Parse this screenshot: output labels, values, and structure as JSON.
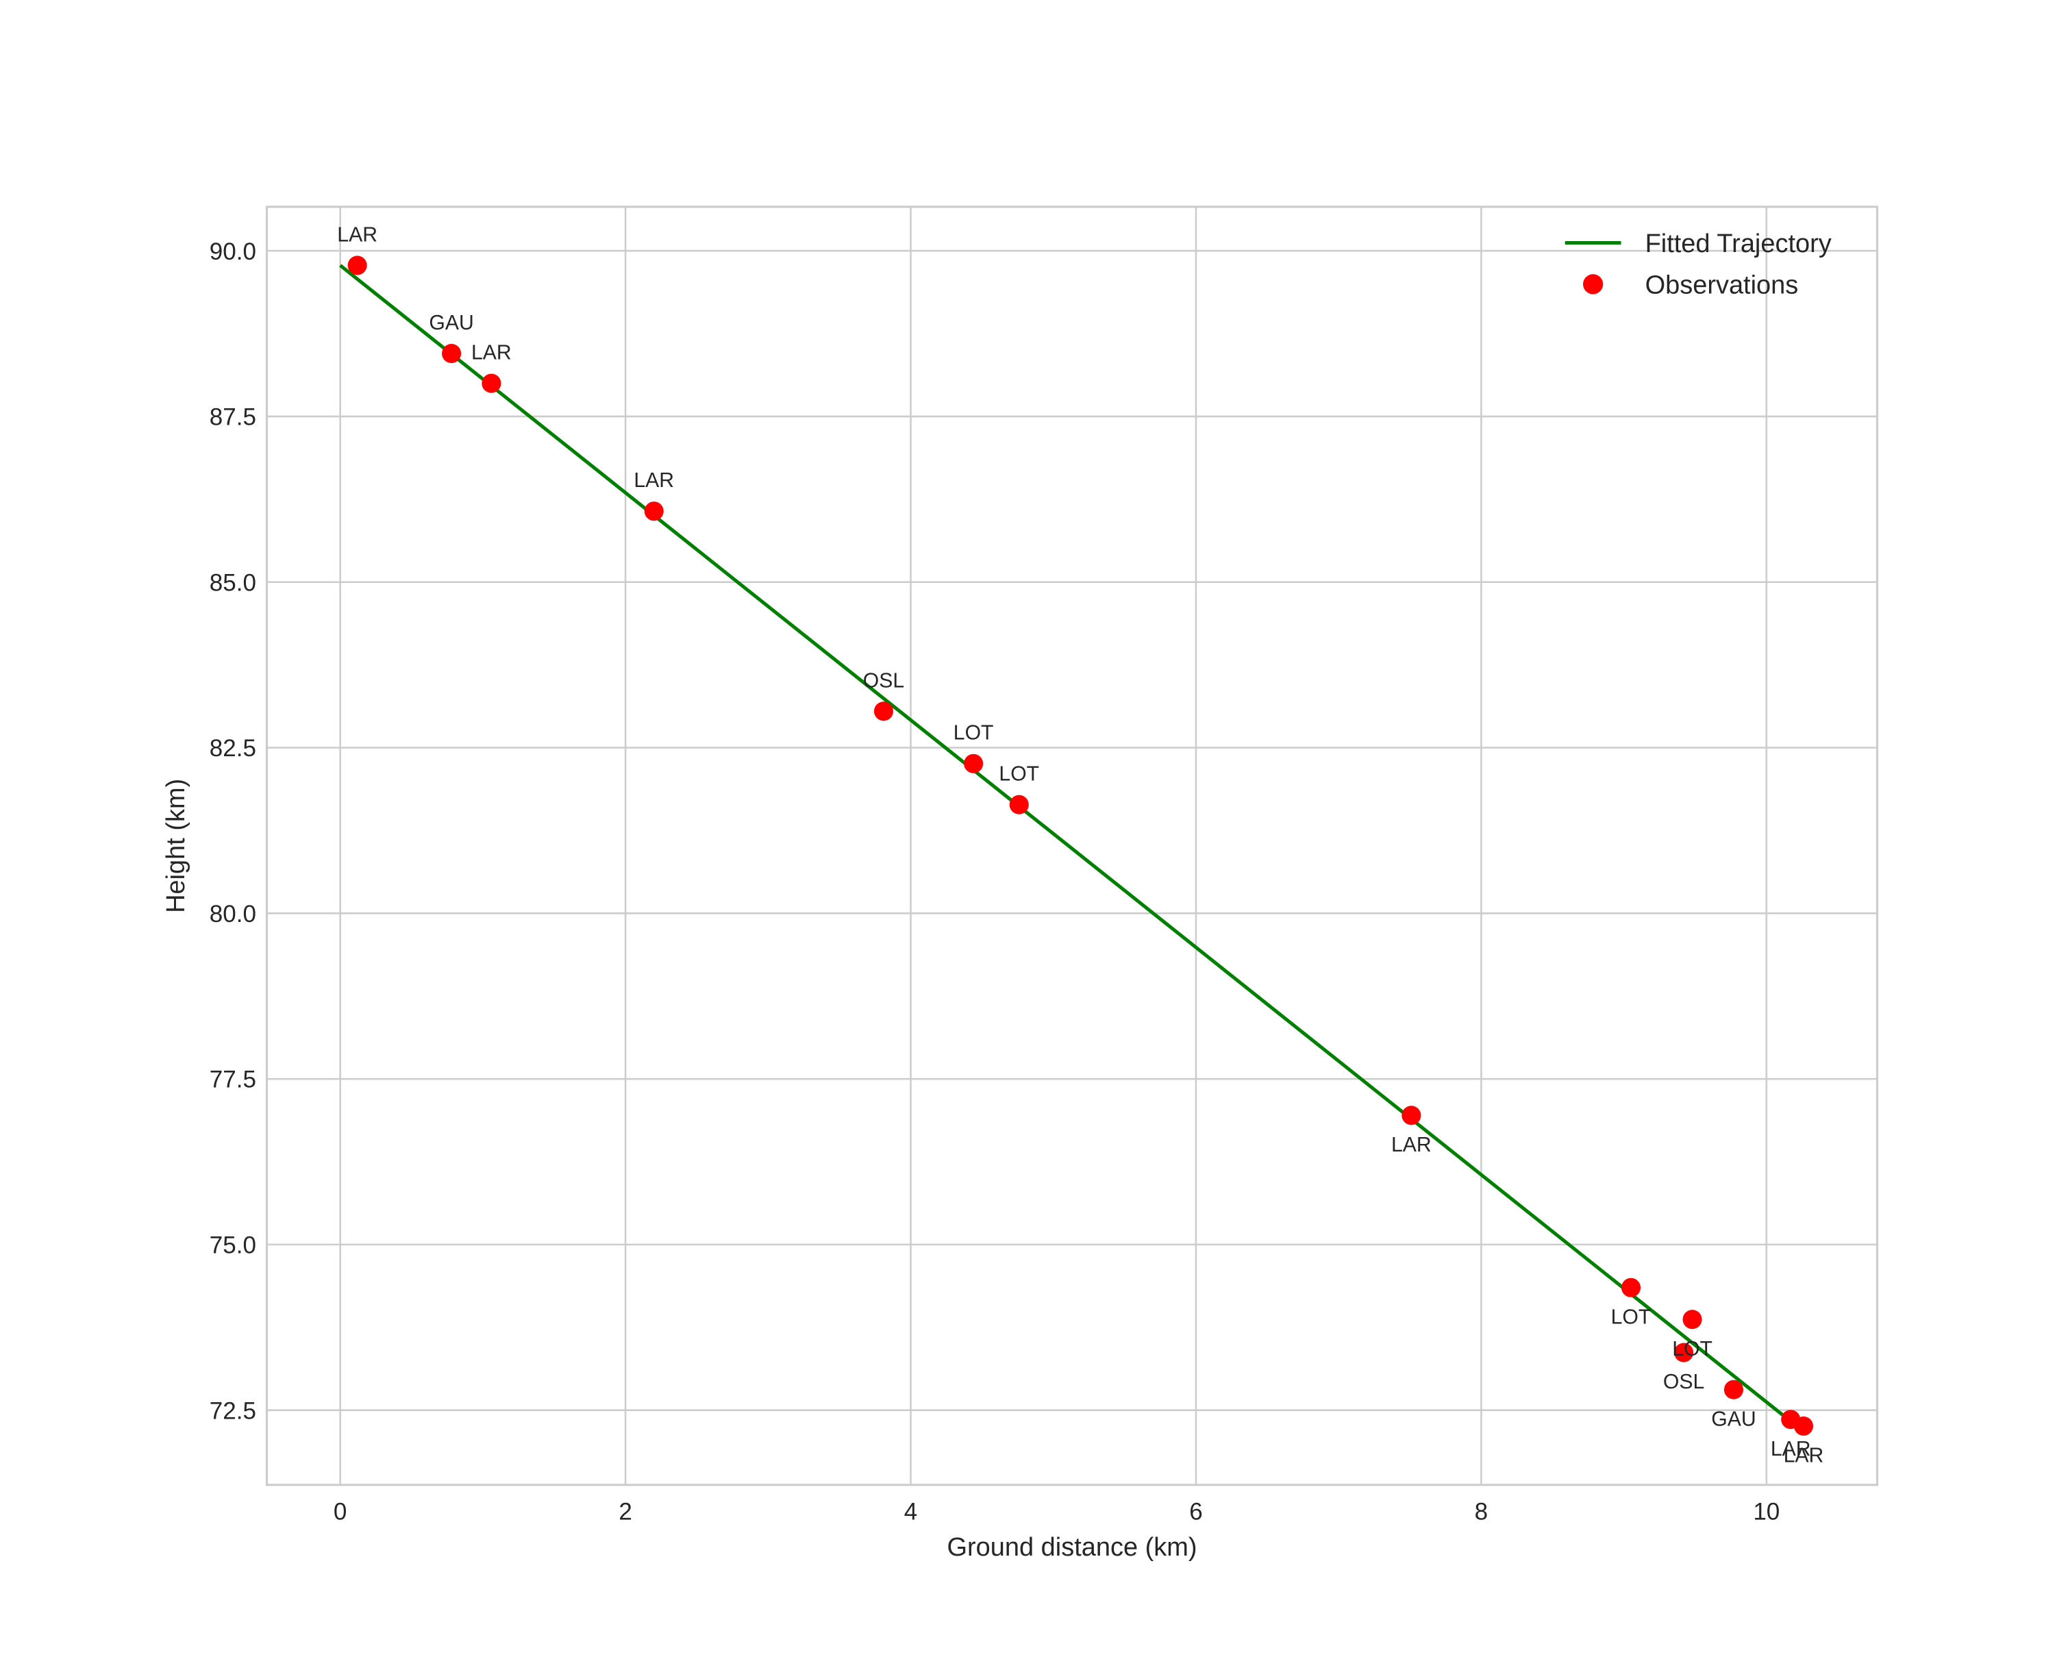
{
  "chart_data": {
    "type": "scatter",
    "title": "",
    "xlabel": "Ground distance (km)",
    "ylabel": "Height (km)",
    "xlim": [
      -0.52,
      10.78
    ],
    "ylim": [
      71.37,
      90.67
    ],
    "xticks": [
      0,
      2,
      4,
      6,
      8,
      10
    ],
    "xtick_labels": [
      "0",
      "2",
      "4",
      "6",
      "8",
      "10"
    ],
    "yticks": [
      72.5,
      75.0,
      77.5,
      80.0,
      82.5,
      85.0,
      87.5,
      90.0
    ],
    "ytick_labels": [
      "72.5",
      "75.0",
      "77.5",
      "80.0",
      "82.5",
      "85.0",
      "87.5",
      "90.0"
    ],
    "grid": true,
    "legend_position": "upper right",
    "series": [
      {
        "name": "Fitted Trajectory",
        "type": "line",
        "color": "#008000",
        "x": [
          0.0,
          10.13
        ],
        "y": [
          89.78,
          72.4
        ]
      },
      {
        "name": "Observations",
        "type": "scatter",
        "color": "#ff0000",
        "points": [
          {
            "x": 0.12,
            "y": 89.78,
            "label": "LAR",
            "label_pos": "above"
          },
          {
            "x": 0.78,
            "y": 88.45,
            "label": "GAU",
            "label_pos": "above"
          },
          {
            "x": 1.06,
            "y": 88.0,
            "label": "LAR",
            "label_pos": "above"
          },
          {
            "x": 2.2,
            "y": 86.07,
            "label": "LAR",
            "label_pos": "above"
          },
          {
            "x": 3.81,
            "y": 83.05,
            "label": "OSL",
            "label_pos": "above"
          },
          {
            "x": 4.44,
            "y": 82.26,
            "label": "LOT",
            "label_pos": "above"
          },
          {
            "x": 4.76,
            "y": 81.64,
            "label": "LOT",
            "label_pos": "above"
          },
          {
            "x": 7.51,
            "y": 76.95,
            "label": "LAR",
            "label_pos": "below"
          },
          {
            "x": 9.05,
            "y": 74.35,
            "label": "LOT",
            "label_pos": "below"
          },
          {
            "x": 9.48,
            "y": 73.87,
            "label": "LOT",
            "label_pos": "below"
          },
          {
            "x": 9.42,
            "y": 73.37,
            "label": "OSL",
            "label_pos": "below"
          },
          {
            "x": 9.77,
            "y": 72.81,
            "label": "GAU",
            "label_pos": "below"
          },
          {
            "x": 10.17,
            "y": 72.36,
            "label": "LAR",
            "label_pos": "below"
          },
          {
            "x": 10.26,
            "y": 72.26,
            "label": "LAR",
            "label_pos": "below"
          }
        ]
      }
    ],
    "legend": [
      {
        "label": "Fitted Trajectory",
        "marker": "line",
        "color": "#008000"
      },
      {
        "label": "Observations",
        "marker": "circle",
        "color": "#ff0000"
      }
    ]
  },
  "colors": {
    "grid": "#cccccc",
    "spine": "#cccccc",
    "text": "#262626",
    "line": "#008000",
    "marker": "#ff0000",
    "background": "#ffffff"
  }
}
